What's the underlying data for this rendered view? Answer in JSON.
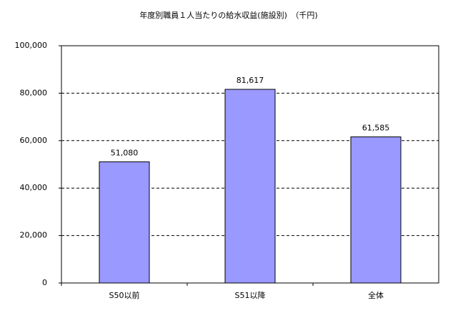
{
  "chart_data": {
    "type": "bar",
    "title": "年度別職員１人当たりの給水収益(施設別)　（千円)",
    "categories": [
      "S50以前",
      "S51以降",
      "全体"
    ],
    "values": [
      51080,
      81617,
      61585
    ],
    "value_labels": [
      "51,080",
      "81,617",
      "61,585"
    ],
    "color": "#9999ff",
    "ylim": [
      0,
      100000
    ],
    "yticks": [
      0,
      {
        "value": 20000,
        "label": "20,000"
      },
      {
        "value": 40000,
        "label": "40,000"
      },
      {
        "value": 60000,
        "label": "60,000"
      },
      {
        "value": 80000,
        "label": "80,000"
      },
      {
        "value": 100000,
        "label": "100,000"
      }
    ],
    "grid": true
  }
}
